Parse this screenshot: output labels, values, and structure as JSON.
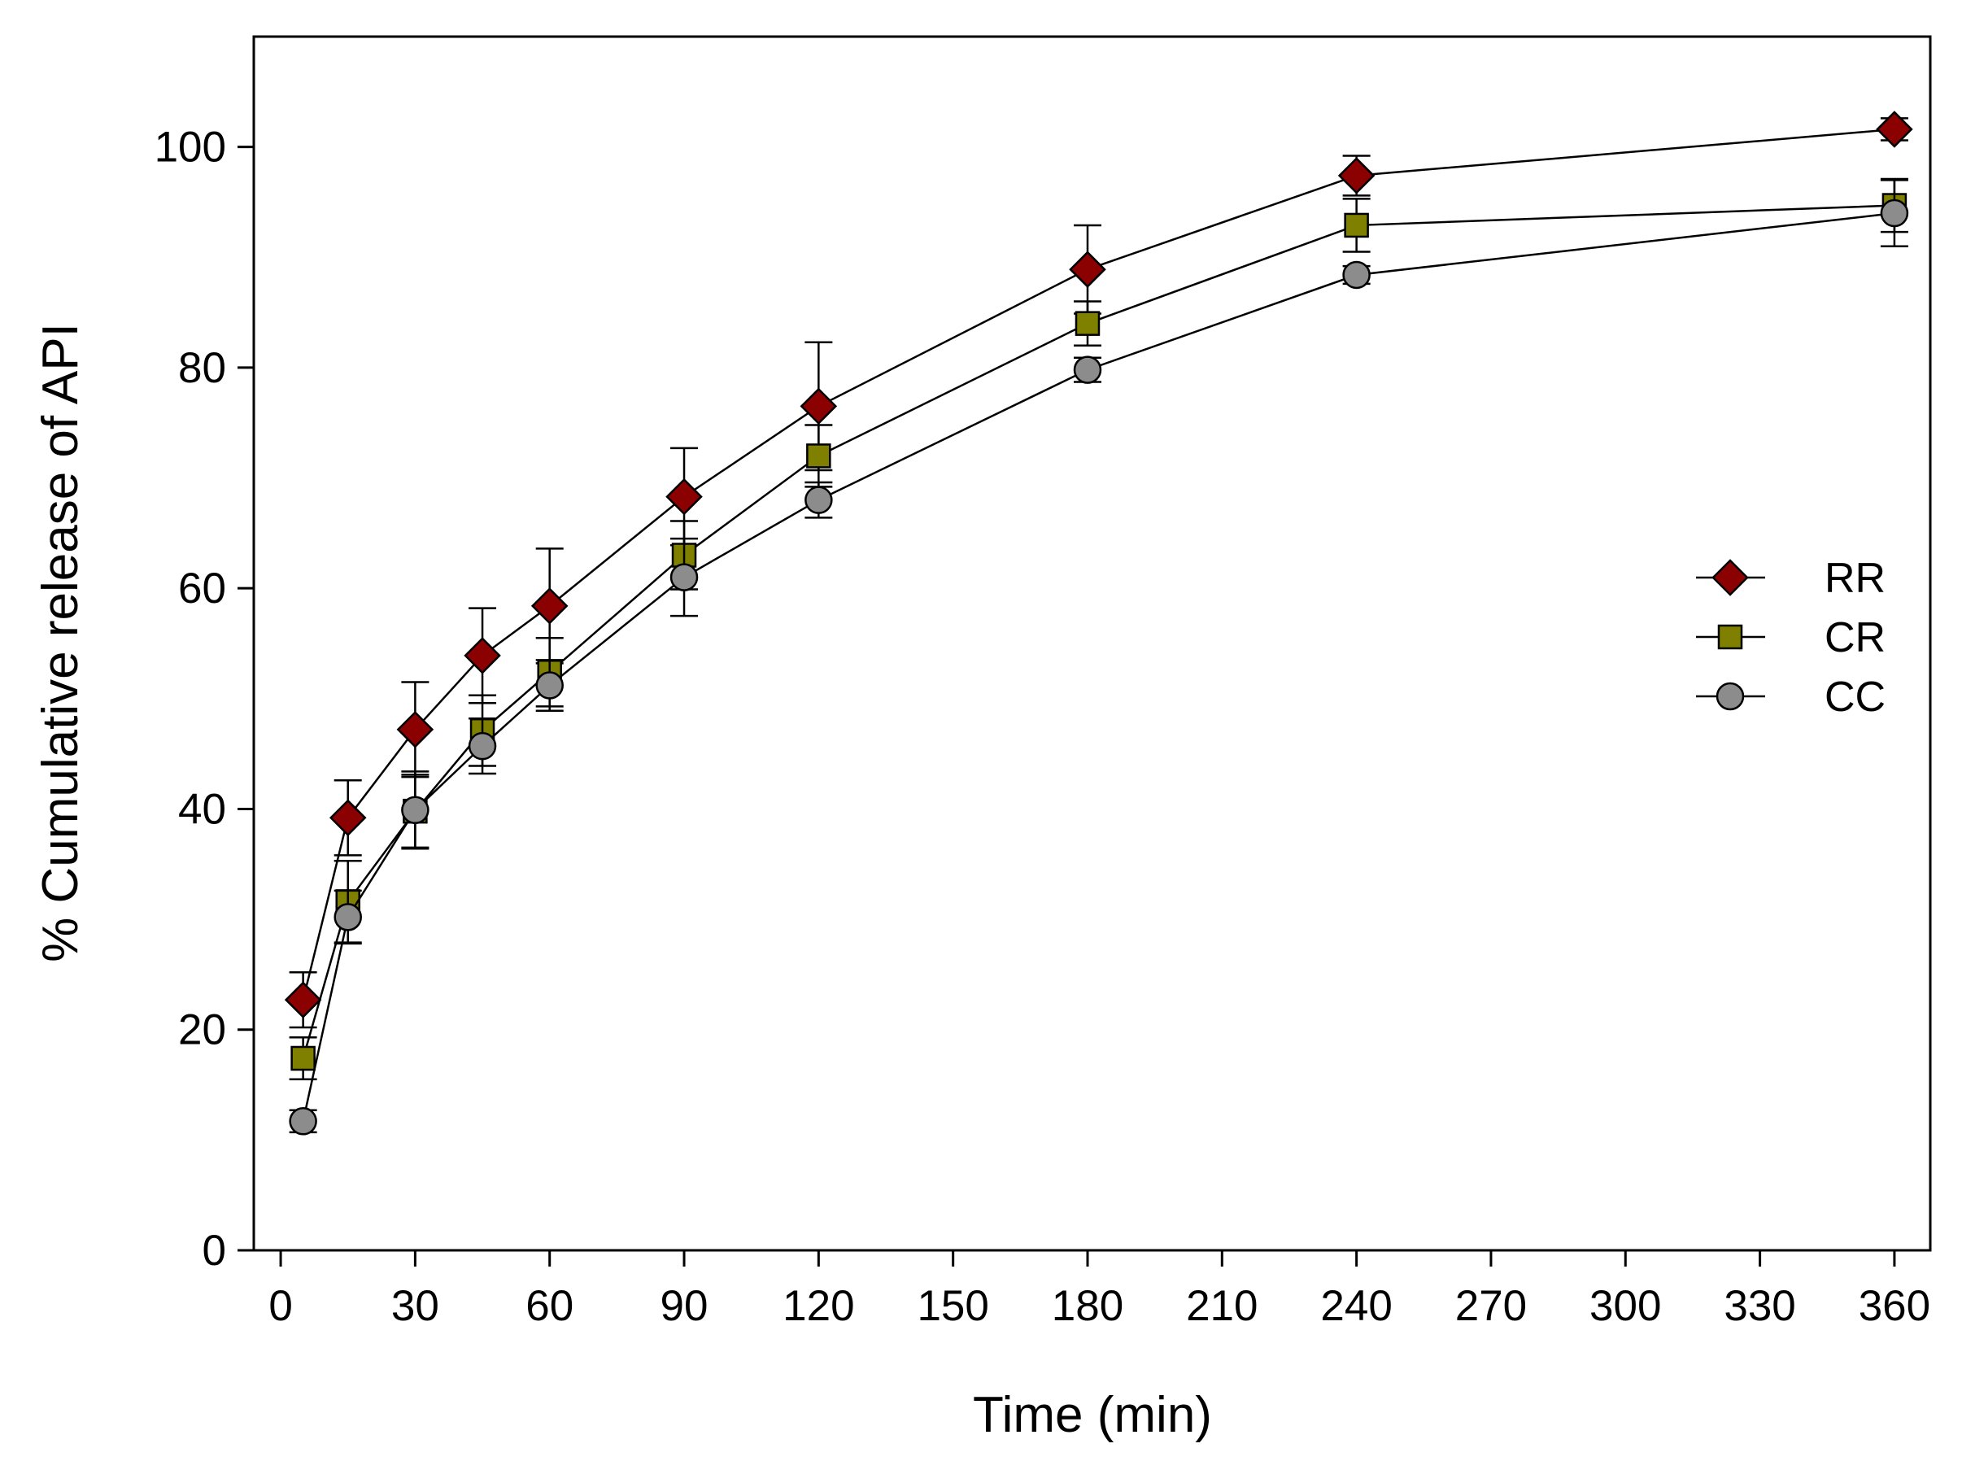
{
  "chart_data": {
    "type": "line",
    "title": "",
    "xlabel": "Time (min)",
    "ylabel": "% Cumulative release of API",
    "xlim": [
      -6,
      368
    ],
    "ylim": [
      0,
      110
    ],
    "xticks": [
      0,
      30,
      60,
      90,
      120,
      150,
      180,
      210,
      240,
      270,
      300,
      330,
      360
    ],
    "yticks": [
      0,
      20,
      40,
      60,
      80,
      100
    ],
    "grid": false,
    "legend_position": "right",
    "x": [
      5,
      15,
      30,
      45,
      60,
      90,
      120,
      180,
      240,
      360
    ],
    "series": [
      {
        "name": "RR",
        "marker": "diamond",
        "color": "#8b0000",
        "values": [
          22.7,
          39.2,
          47.2,
          53.9,
          58.4,
          68.3,
          76.5,
          88.9,
          97.4,
          101.6
        ],
        "errors": [
          2.5,
          3.4,
          4.3,
          4.3,
          5.2,
          4.4,
          5.8,
          4.0,
          1.8,
          1.0
        ]
      },
      {
        "name": "CR",
        "marker": "square",
        "color": "#808000",
        "values": [
          17.4,
          31.6,
          39.8,
          47.1,
          52.4,
          63.0,
          72.0,
          84.0,
          92.9,
          94.7
        ],
        "errors": [
          1.9,
          3.7,
          3.3,
          3.2,
          3.1,
          3.1,
          2.8,
          2.0,
          2.4,
          2.4
        ]
      },
      {
        "name": "CC",
        "marker": "circle",
        "color": "#8c8c8c",
        "values": [
          11.7,
          30.2,
          39.9,
          45.7,
          51.2,
          61.0,
          68.0,
          79.8,
          88.4,
          94.0
        ],
        "errors": [
          1.0,
          2.4,
          3.5,
          2.5,
          2.3,
          3.5,
          1.6,
          1.1,
          0.8,
          3.0
        ]
      }
    ]
  }
}
